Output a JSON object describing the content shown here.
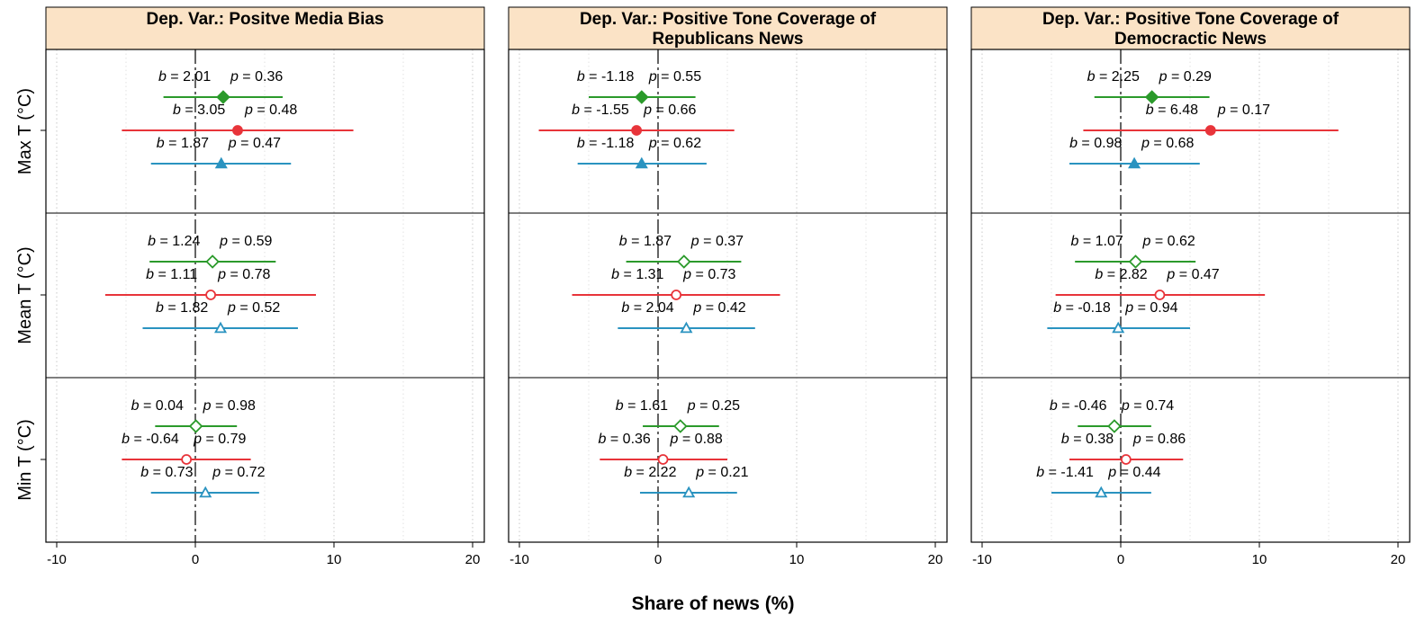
{
  "chart_data": {
    "type": "forest",
    "xlabel": "Share of news (%)",
    "xlim": [
      -10,
      20
    ],
    "xticks": [
      -10,
      0,
      10,
      20
    ],
    "reference_line_x": 0,
    "grid": "vertical dotted",
    "series_colors": [
      "#2b9a2b",
      "#e8343a",
      "#2a93c0"
    ],
    "rows": [
      {
        "label": "Max T (°C)",
        "marker_fill": "solid"
      },
      {
        "label": "Mean T (°C)",
        "marker_fill": "hollow"
      },
      {
        "label": "Min T (°C)",
        "marker_fill": "hollow"
      }
    ],
    "panels": [
      {
        "title": [
          "Dep. Var.: Positve Media Bias"
        ],
        "rows": [
          [
            {
              "b": 2.01,
              "p": 0.36,
              "lo": -2.3,
              "hi": 6.3
            },
            {
              "b": 3.05,
              "p": 0.48,
              "lo": -5.3,
              "hi": 11.4
            },
            {
              "b": 1.87,
              "p": 0.47,
              "lo": -3.2,
              "hi": 6.9
            }
          ],
          [
            {
              "b": 1.24,
              "p": 0.59,
              "lo": -3.3,
              "hi": 5.8
            },
            {
              "b": 1.11,
              "p": 0.78,
              "lo": -6.5,
              "hi": 8.7
            },
            {
              "b": 1.82,
              "p": 0.52,
              "lo": -3.8,
              "hi": 7.4
            }
          ],
          [
            {
              "b": 0.04,
              "p": 0.98,
              "lo": -2.9,
              "hi": 3.0
            },
            {
              "b": -0.64,
              "p": 0.79,
              "lo": -5.3,
              "hi": 4.0
            },
            {
              "b": 0.73,
              "p": 0.72,
              "lo": -3.2,
              "hi": 4.6
            }
          ]
        ]
      },
      {
        "title": [
          "Dep. Var.: Positive Tone Coverage of",
          "Republicans News"
        ],
        "rows": [
          [
            {
              "b": -1.18,
              "p": 0.55,
              "lo": -5.0,
              "hi": 2.7
            },
            {
              "b": -1.55,
              "p": 0.66,
              "lo": -8.6,
              "hi": 5.5
            },
            {
              "b": -1.18,
              "p": 0.62,
              "lo": -5.8,
              "hi": 3.5
            }
          ],
          [
            {
              "b": 1.87,
              "p": 0.37,
              "lo": -2.3,
              "hi": 6.0
            },
            {
              "b": 1.31,
              "p": 0.73,
              "lo": -6.2,
              "hi": 8.8
            },
            {
              "b": 2.04,
              "p": 0.42,
              "lo": -2.9,
              "hi": 7.0
            }
          ],
          [
            {
              "b": 1.61,
              "p": 0.25,
              "lo": -1.1,
              "hi": 4.4
            },
            {
              "b": 0.36,
              "p": 0.88,
              "lo": -4.2,
              "hi": 5.0
            },
            {
              "b": 2.22,
              "p": 0.21,
              "lo": -1.3,
              "hi": 5.7
            }
          ]
        ]
      },
      {
        "title": [
          "Dep. Var.: Positive Tone Coverage of",
          "Democractic News"
        ],
        "rows": [
          [
            {
              "b": 2.25,
              "p": 0.29,
              "lo": -1.9,
              "hi": 6.4
            },
            {
              "b": 6.48,
              "p": 0.17,
              "lo": -2.7,
              "hi": 15.7
            },
            {
              "b": 0.98,
              "p": 0.68,
              "lo": -3.7,
              "hi": 5.7
            }
          ],
          [
            {
              "b": 1.07,
              "p": 0.62,
              "lo": -3.3,
              "hi": 5.4
            },
            {
              "b": 2.82,
              "p": 0.47,
              "lo": -4.7,
              "hi": 10.4
            },
            {
              "b": -0.18,
              "p": 0.94,
              "lo": -5.3,
              "hi": 5.0
            }
          ],
          [
            {
              "b": -0.46,
              "p": 0.74,
              "lo": -3.1,
              "hi": 2.2
            },
            {
              "b": 0.38,
              "p": 0.86,
              "lo": -3.7,
              "hi": 4.5
            },
            {
              "b": -1.41,
              "p": 0.44,
              "lo": -5.0,
              "hi": 2.2
            }
          ]
        ]
      }
    ]
  }
}
